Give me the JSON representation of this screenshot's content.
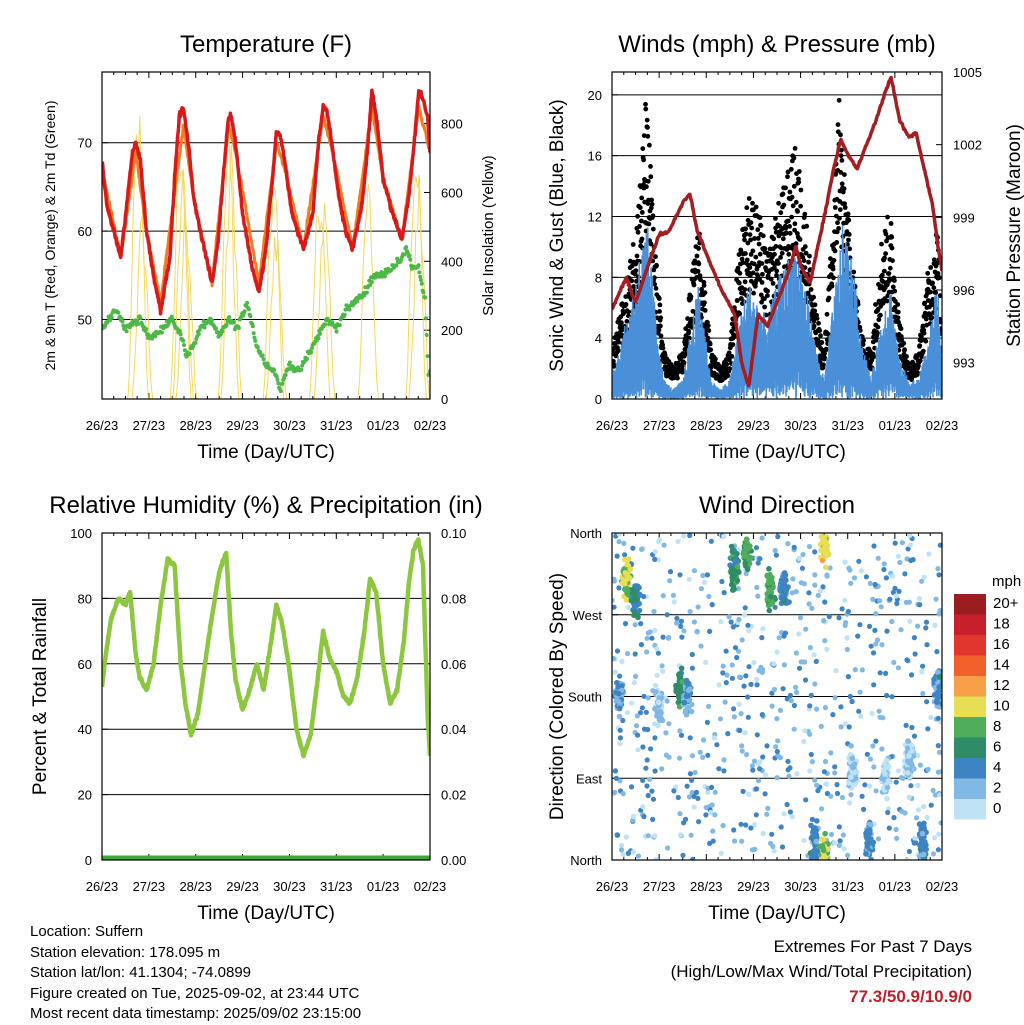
{
  "chart_data": [
    {
      "type": "line",
      "title": "Temperature (F)",
      "xlabel": "Time (Day/UTC)",
      "ylabel": "2m & 9m T (Red, Orange) & 2m Td (Green)",
      "y2label": "Solar Insolation (Yellow)",
      "xticks": [
        "26/23",
        "27/23",
        "28/23",
        "29/23",
        "30/23",
        "31/23",
        "01/23",
        "02/23"
      ],
      "xlim": [
        0,
        7
      ],
      "ylim": [
        41,
        78
      ],
      "yticks": [
        50,
        60,
        70
      ],
      "y2lim": [
        0,
        950
      ],
      "y2ticks": [
        0,
        200,
        400,
        600,
        800
      ],
      "grid": "horizontal",
      "series": [
        {
          "name": "2m T",
          "color": "#d7191c",
          "axis": "left",
          "x": [
            0,
            0.1,
            0.25,
            0.4,
            0.55,
            0.65,
            0.72,
            0.82,
            0.95,
            1.1,
            1.25,
            1.45,
            1.55,
            1.65,
            1.74,
            1.84,
            1.95,
            2.1,
            2.35,
            2.48,
            2.6,
            2.7,
            2.76,
            2.85,
            3.0,
            3.2,
            3.35,
            3.5,
            3.64,
            3.72,
            3.8,
            3.9,
            4.05,
            4.3,
            4.5,
            4.62,
            4.72,
            4.78,
            4.88,
            5.05,
            5.2,
            5.35,
            5.55,
            5.68,
            5.76,
            5.85,
            6.0,
            6.2,
            6.4,
            6.55,
            6.68,
            6.76,
            6.85,
            6.95,
            7.0
          ],
          "y": [
            68,
            63,
            60,
            57,
            64,
            69,
            70,
            68,
            60,
            55,
            51,
            57,
            66,
            73,
            74,
            70,
            64,
            60,
            54,
            59,
            67,
            73,
            73,
            70,
            62,
            56,
            53,
            58,
            66,
            71,
            71,
            68,
            62,
            58,
            62,
            70,
            74,
            74,
            71,
            64,
            60,
            58,
            63,
            70,
            76,
            73,
            66,
            62,
            59,
            64,
            71,
            76,
            75,
            73,
            69
          ]
        },
        {
          "name": "9m T",
          "color": "#f07c24",
          "axis": "left",
          "x": [
            0,
            0.4,
            0.72,
            0.95,
            1.25,
            1.74,
            1.95,
            2.35,
            2.7,
            2.85,
            3.35,
            3.72,
            3.9,
            4.3,
            4.72,
            4.88,
            5.35,
            5.76,
            6.0,
            6.4,
            6.76,
            7.0
          ],
          "y": [
            67,
            57,
            69,
            60,
            52,
            72,
            64,
            54,
            72,
            69,
            54,
            70,
            67,
            58,
            73,
            70,
            58,
            74,
            66,
            59,
            74,
            69
          ]
        },
        {
          "name": "2m Td",
          "color": "#4db848",
          "axis": "left",
          "x": [
            0,
            0.3,
            0.5,
            0.8,
            1.0,
            1.3,
            1.5,
            1.7,
            1.8,
            1.95,
            2.1,
            2.3,
            2.5,
            2.7,
            2.9,
            3.1,
            3.3,
            3.5,
            3.7,
            3.8,
            4.0,
            4.2,
            4.4,
            4.6,
            4.8,
            5.0,
            5.2,
            5.4,
            5.6,
            5.8,
            6.0,
            6.2,
            6.4,
            6.5,
            6.6,
            6.75,
            6.9,
            6.97,
            7.0
          ],
          "y": [
            49,
            51,
            49,
            50,
            48,
            49,
            50,
            48,
            46,
            47,
            49,
            50,
            48,
            50,
            49,
            52,
            47,
            45,
            44,
            42,
            45,
            44,
            46,
            48,
            50,
            49,
            51,
            52,
            53,
            55,
            55,
            56,
            57,
            58,
            56,
            56,
            52,
            43,
            44
          ]
        },
        {
          "name": "Solar Insolation",
          "color": "#f6d95a",
          "axis": "right",
          "daylight_peaks": [
            [
              0.77,
              900
            ],
            [
              0.86,
              560
            ],
            [
              1.68,
              880
            ],
            [
              1.73,
              700
            ],
            [
              1.8,
              600
            ],
            [
              2.7,
              820
            ],
            [
              2.76,
              760
            ],
            [
              3.66,
              710
            ],
            [
              3.72,
              520
            ],
            [
              4.65,
              700
            ],
            [
              4.75,
              630
            ],
            [
              5.68,
              660
            ],
            [
              6.7,
              880
            ],
            [
              6.77,
              640
            ]
          ]
        }
      ]
    },
    {
      "type": "scatter",
      "title": "Winds (mph) & Pressure (mb)",
      "xlabel": "Time (Day/UTC)",
      "ylabel": "Sonic Wind & Gust (Blue, Black)",
      "y2label": "Station Pressure (Maroon)",
      "xticks": [
        "26/23",
        "27/23",
        "28/23",
        "29/23",
        "30/23",
        "31/23",
        "01/23",
        "02/23"
      ],
      "xlim": [
        0,
        7
      ],
      "ylim": [
        0,
        21.5
      ],
      "yticks": [
        0,
        4,
        8,
        12,
        16,
        20
      ],
      "y2lim": [
        991.5,
        1005
      ],
      "y2ticks": [
        993,
        996,
        999,
        1002,
        1005
      ],
      "grid": "horizontal",
      "series": [
        {
          "name": "Sonic Wind",
          "color": "#4a90d9",
          "axis": "left",
          "x": [
            0,
            0.2,
            0.4,
            0.6,
            0.75,
            0.9,
            1.1,
            1.3,
            1.5,
            1.7,
            1.85,
            2.1,
            2.3,
            2.5,
            2.7,
            2.9,
            3.1,
            3.3,
            3.5,
            3.7,
            3.9,
            4.1,
            4.3,
            4.5,
            4.7,
            4.9,
            5.1,
            5.3,
            5.5,
            5.7,
            5.9,
            6.1,
            6.3,
            6.5,
            6.7,
            6.9,
            7.0
          ],
          "y": [
            1.5,
            3,
            5,
            7.5,
            9,
            5,
            1,
            0.5,
            1,
            4,
            6,
            1,
            0.5,
            1,
            4,
            6,
            5,
            4,
            6,
            7,
            8,
            6,
            3,
            1,
            5,
            9,
            7,
            3,
            1,
            4,
            6,
            2,
            1,
            1,
            3,
            6,
            2
          ]
        },
        {
          "name": "Gust",
          "color": "#000000",
          "axis": "left",
          "x": [
            0,
            0.2,
            0.4,
            0.6,
            0.72,
            0.8,
            0.9,
            1.1,
            1.3,
            1.5,
            1.7,
            1.85,
            2.1,
            2.3,
            2.5,
            2.7,
            2.9,
            3.1,
            3.3,
            3.5,
            3.7,
            3.9,
            4.1,
            4.3,
            4.5,
            4.7,
            4.82,
            4.9,
            5.1,
            5.3,
            5.5,
            5.7,
            5.9,
            6.1,
            6.3,
            6.5,
            6.7,
            6.9,
            7.0
          ],
          "y": [
            3,
            6,
            9,
            14,
            19,
            16,
            10,
            3,
            2,
            3,
            8,
            11,
            3,
            2,
            3,
            10,
            13,
            12,
            9,
            12,
            14,
            16,
            12,
            6,
            3,
            12,
            20,
            15,
            9,
            4,
            3,
            10,
            12,
            5,
            2,
            3,
            8,
            11,
            5
          ]
        },
        {
          "name": "Station Pressure",
          "color": "#a31e22",
          "axis": "right",
          "x": [
            0,
            0.3,
            0.5,
            0.8,
            1.0,
            1.2,
            1.5,
            1.65,
            1.8,
            2.0,
            2.3,
            2.6,
            2.75,
            2.9,
            3.1,
            3.3,
            3.5,
            3.7,
            3.9,
            4.0,
            4.2,
            4.5,
            4.7,
            4.85,
            5.0,
            5.2,
            5.4,
            5.6,
            5.8,
            5.92,
            6.1,
            6.3,
            6.45,
            6.6,
            6.8,
            6.9,
            7.0
          ],
          "y": [
            995.2,
            996.5,
            995.5,
            997.2,
            998.3,
            998.4,
            999.6,
            1000.0,
            998.5,
            997.5,
            996.1,
            995.0,
            993.0,
            992.0,
            995.0,
            994.5,
            995.5,
            996.5,
            997.8,
            997.0,
            996.3,
            999.0,
            1001.0,
            1002.2,
            1001.6,
            1001.0,
            1002.0,
            1003.0,
            1004.2,
            1004.8,
            1003.0,
            1002.3,
            1002.5,
            1001.2,
            999.5,
            998.0,
            996.8
          ]
        }
      ]
    },
    {
      "type": "line",
      "title": "Relative Humidity (%) & Precipitation (in)",
      "xlabel": "Time (Day/UTC)",
      "ylabel": "Percent & Total Rainfall",
      "xticks": [
        "26/23",
        "27/23",
        "28/23",
        "29/23",
        "30/23",
        "31/23",
        "01/23",
        "02/23"
      ],
      "xlim": [
        0,
        7
      ],
      "ylim": [
        0,
        100
      ],
      "yticks": [
        0,
        20,
        40,
        60,
        80,
        100
      ],
      "y2lim": [
        0,
        0.1
      ],
      "y2ticks": [
        0.0,
        0.02,
        0.04,
        0.06,
        0.08,
        0.1
      ],
      "grid": "horizontal",
      "series": [
        {
          "name": "Relative Humidity",
          "color": "#8dc63f",
          "axis": "left",
          "x": [
            0,
            0.1,
            0.2,
            0.35,
            0.5,
            0.6,
            0.72,
            0.8,
            0.95,
            1.1,
            1.25,
            1.4,
            1.55,
            1.68,
            1.78,
            1.9,
            2.05,
            2.2,
            2.35,
            2.5,
            2.65,
            2.75,
            2.85,
            3.0,
            3.15,
            3.3,
            3.45,
            3.6,
            3.72,
            3.85,
            4.0,
            4.15,
            4.3,
            4.45,
            4.6,
            4.72,
            4.85,
            5.0,
            5.15,
            5.3,
            5.45,
            5.6,
            5.72,
            5.85,
            6.0,
            6.15,
            6.3,
            6.45,
            6.55,
            6.65,
            6.75,
            6.85,
            6.95,
            7.0
          ],
          "y": [
            53,
            65,
            74,
            80,
            78,
            82,
            63,
            56,
            52,
            60,
            78,
            92,
            90,
            60,
            48,
            38,
            45,
            60,
            75,
            88,
            94,
            70,
            55,
            46,
            52,
            60,
            52,
            66,
            78,
            72,
            58,
            40,
            32,
            38,
            55,
            70,
            62,
            58,
            50,
            48,
            56,
            70,
            86,
            82,
            60,
            48,
            52,
            68,
            85,
            95,
            98,
            90,
            44,
            32
          ]
        },
        {
          "name": "Total Rainfall",
          "color": "#3aa935",
          "axis": "right",
          "x": [
            0,
            7
          ],
          "y": [
            0.0,
            0.0
          ]
        }
      ]
    },
    {
      "type": "scatter",
      "title": "Wind Direction",
      "xlabel": "Time (Day/UTC)",
      "ylabel": "Direction (Colored By Speed)",
      "xticks": [
        "26/23",
        "27/23",
        "28/23",
        "29/23",
        "30/23",
        "31/23",
        "01/23",
        "02/23"
      ],
      "xlim": [
        0,
        7
      ],
      "ylim": [
        0,
        360
      ],
      "yticklabels": [
        "North",
        "East",
        "South",
        "West",
        "North"
      ],
      "yticks": [
        0,
        90,
        180,
        270,
        360
      ],
      "grid": "horizontal",
      "colorbar": {
        "units": "mph",
        "labels": [
          "20+",
          "18",
          "16",
          "14",
          "12",
          "10",
          "8",
          "6",
          "4",
          "2",
          "0"
        ],
        "colors": [
          "#9b1d20",
          "#c8202b",
          "#e0362e",
          "#f0612c",
          "#f7a048",
          "#e8de55",
          "#4fad5b",
          "#2e8d68",
          "#3e84c2",
          "#82b9e4",
          "#bfe3f5"
        ]
      },
      "clusters": [
        {
          "t": 0.3,
          "dir": 310,
          "speed": 9
        },
        {
          "t": 0.15,
          "dir": 180,
          "speed": 3
        },
        {
          "t": 0.5,
          "dir": 290,
          "speed": 5
        },
        {
          "t": 1.0,
          "dir": 170,
          "speed": 1
        },
        {
          "t": 1.45,
          "dir": 190,
          "speed": 6
        },
        {
          "t": 1.6,
          "dir": 180,
          "speed": 3
        },
        {
          "t": 2.6,
          "dir": 320,
          "speed": 6
        },
        {
          "t": 2.85,
          "dir": 335,
          "speed": 7
        },
        {
          "t": 3.35,
          "dir": 300,
          "speed": 7
        },
        {
          "t": 3.65,
          "dir": 300,
          "speed": 4
        },
        {
          "t": 4.5,
          "dir": 345,
          "speed": 10
        },
        {
          "t": 4.3,
          "dir": 20,
          "speed": 4
        },
        {
          "t": 4.5,
          "dir": 8,
          "speed": 9
        },
        {
          "t": 5.1,
          "dir": 100,
          "speed": 1
        },
        {
          "t": 5.45,
          "dir": 20,
          "speed": 4
        },
        {
          "t": 5.8,
          "dir": 90,
          "speed": 1
        },
        {
          "t": 6.3,
          "dir": 110,
          "speed": 1
        },
        {
          "t": 6.9,
          "dir": 190,
          "speed": 3
        },
        {
          "t": 6.6,
          "dir": 20,
          "speed": 4
        }
      ]
    }
  ],
  "info": {
    "location": "Location: Suffern",
    "elevation": "Station elevation: 178.095 m",
    "latlon": "Station lat/lon: 41.1304; -74.0899",
    "created": "Figure created on Tue, 2025-09-02, at 23:44 UTC",
    "recent": "Most recent data timestamp: 2025/09/02 23:15:00"
  },
  "extremes": {
    "title": "Extremes For Past 7 Days",
    "subtitle": "(High/Low/Max Wind/Total Precipitation)",
    "values": "77.3/50.9/10.9/0",
    "value_color": "#c21e2a"
  }
}
